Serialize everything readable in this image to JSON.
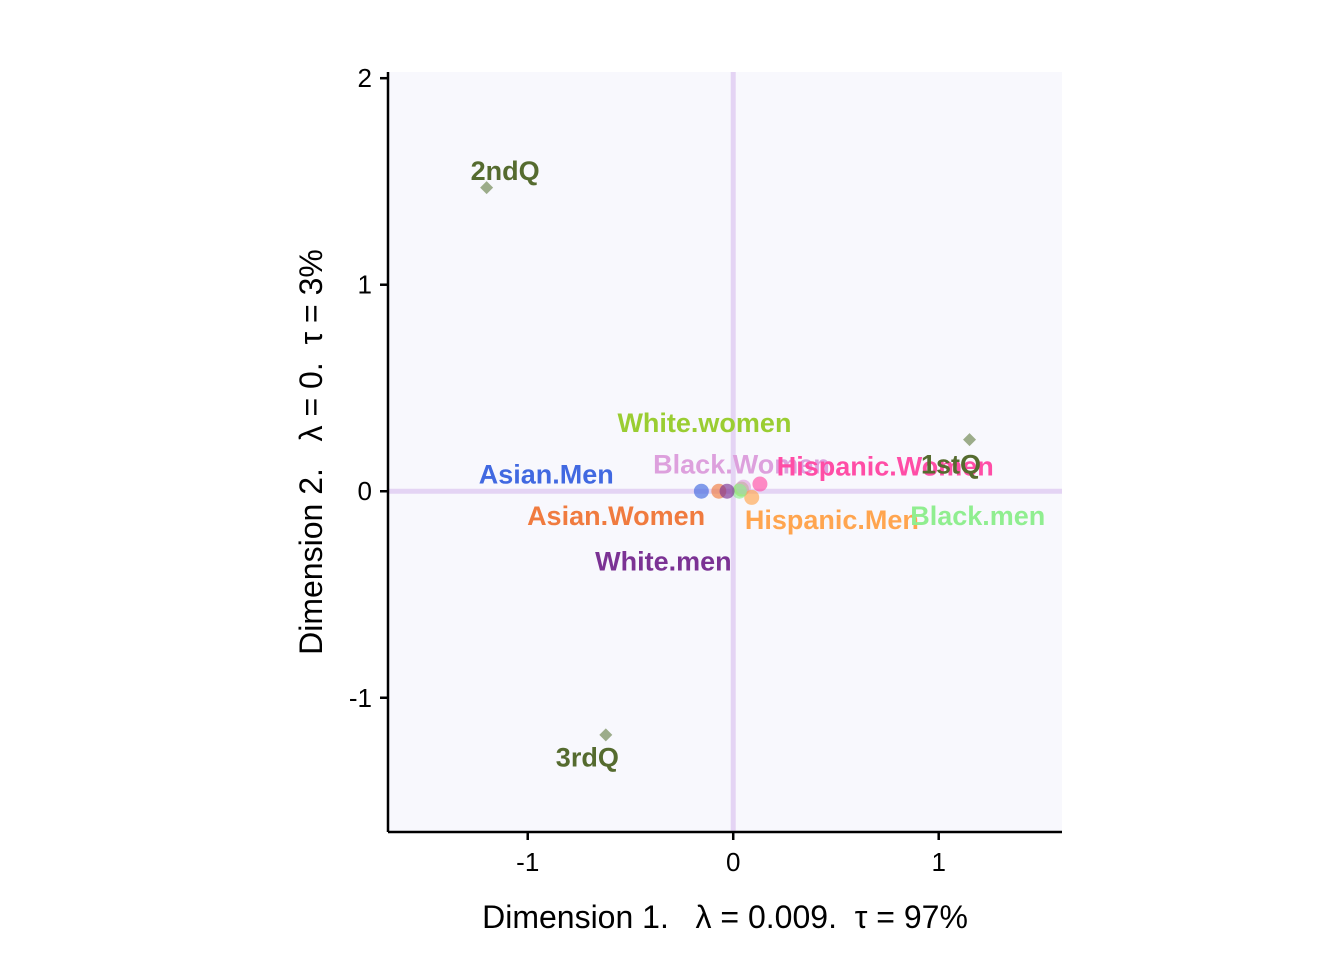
{
  "chart_data": {
    "type": "scatter",
    "xlabel": "Dimension 1.   λ = 0.009.  τ = 97%",
    "ylabel": "Dimension 2.   λ = 0.  τ = 3%",
    "xlim": [
      -1.68,
      1.6
    ],
    "ylim": [
      -1.65,
      2.03
    ],
    "x_ticks": [
      {
        "value": -1,
        "label": "-1"
      },
      {
        "value": 0,
        "label": "0"
      },
      {
        "value": 1,
        "label": "1"
      }
    ],
    "y_ticks": [
      {
        "value": -1,
        "label": "-1"
      },
      {
        "value": 0,
        "label": "0"
      },
      {
        "value": 1,
        "label": "1"
      },
      {
        "value": 2,
        "label": "2"
      }
    ],
    "grid": false,
    "reference_lines": {
      "x": 0,
      "y": 0,
      "color": "#e4d4f4"
    },
    "panel_background": "#f8f8fd",
    "series": [
      {
        "name": "rows",
        "marker": "circle",
        "points": [
          {
            "label": "Asian.Men",
            "x": -0.155,
            "y": 0.0,
            "color": "#4169e1",
            "label_x": -0.91,
            "label_y": 0.08
          },
          {
            "label": "Asian.Women",
            "x": -0.07,
            "y": 0.0,
            "color": "#f07b3f",
            "label_x": -0.57,
            "label_y": -0.12
          },
          {
            "label": "White.women",
            "x": 0.04,
            "y": 0.01,
            "color": "#9acd32",
            "label_x": -0.14,
            "label_y": 0.33
          },
          {
            "label": "Black.Women",
            "x": 0.05,
            "y": 0.02,
            "color": "#dda0dd",
            "label_x": 0.04,
            "label_y": 0.13
          },
          {
            "label": "Hispanic.Women",
            "x": 0.13,
            "y": 0.035,
            "color": "#ff4da6",
            "label_x": 0.74,
            "label_y": 0.12
          },
          {
            "label": "Hispanic.Men",
            "x": 0.09,
            "y": -0.03,
            "color": "#ffa54f",
            "label_x": 0.48,
            "label_y": -0.14
          },
          {
            "label": "Black.men",
            "x": 0.03,
            "y": 0.0,
            "color": "#90ee90",
            "label_x": 1.19,
            "label_y": -0.12
          },
          {
            "label": "White.men",
            "x": -0.03,
            "y": 0.0,
            "color": "#7b3294",
            "label_x": -0.34,
            "label_y": -0.34
          }
        ]
      },
      {
        "name": "columns",
        "marker": "diamond",
        "marker_color": "#9cac8a",
        "label_color": "#556b2f",
        "points": [
          {
            "label": "2ndQ",
            "x": -1.2,
            "y": 1.47,
            "label_x": -1.11,
            "label_y": 1.55
          },
          {
            "label": "1stQ",
            "x": 1.15,
            "y": 0.25,
            "label_x": 1.06,
            "label_y": 0.13
          },
          {
            "label": "3rdQ",
            "x": -0.62,
            "y": -1.18,
            "label_x": -0.71,
            "label_y": -1.29
          }
        ]
      }
    ]
  }
}
